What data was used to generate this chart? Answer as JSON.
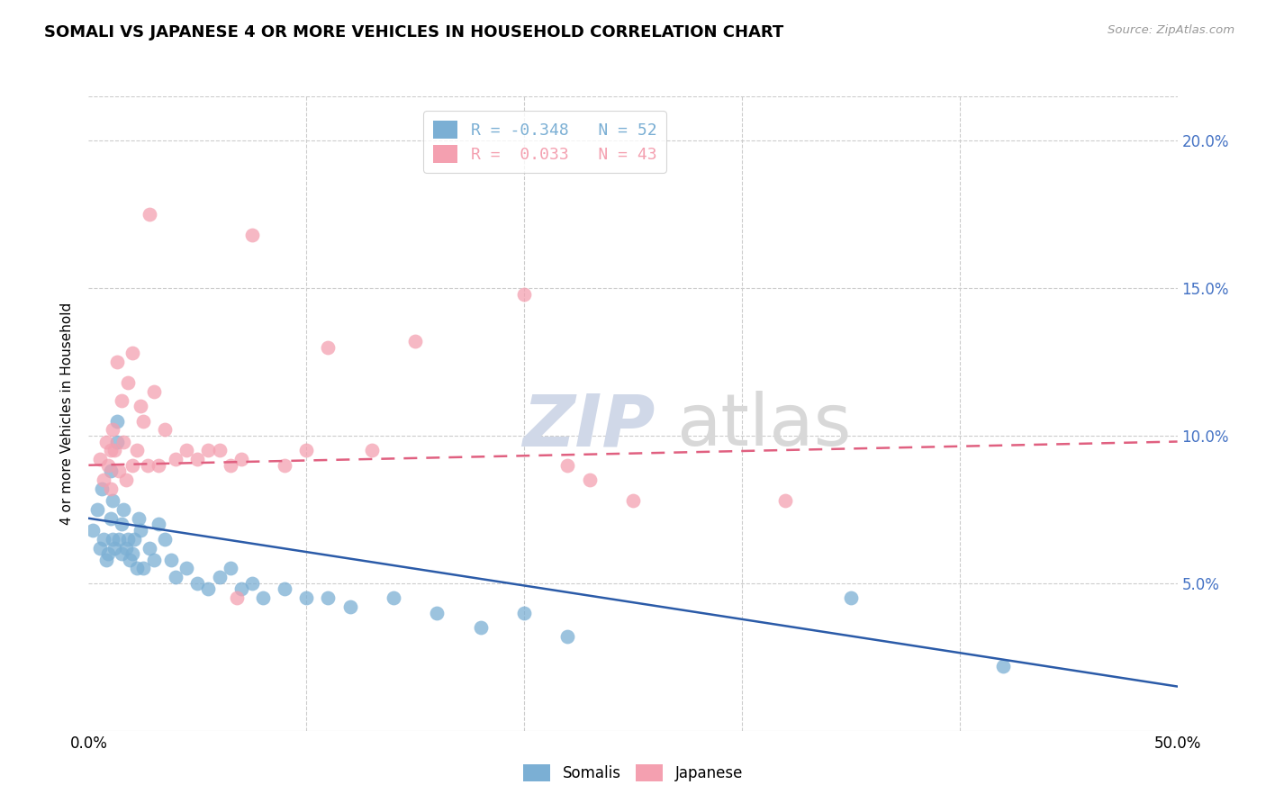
{
  "title": "SOMALI VS JAPANESE 4 OR MORE VEHICLES IN HOUSEHOLD CORRELATION CHART",
  "source": "Source: ZipAtlas.com",
  "ylabel": "4 or more Vehicles in Household",
  "xlim": [
    0.0,
    50.0
  ],
  "ylim": [
    0.0,
    21.5
  ],
  "yticks": [
    5.0,
    10.0,
    15.0,
    20.0
  ],
  "ytick_labels": [
    "5.0%",
    "10.0%",
    "15.0%",
    "20.0%"
  ],
  "legend_entries": [
    {
      "label": "R = -0.348   N = 52",
      "color": "#7BAFD4"
    },
    {
      "label": "R =  0.033   N = 43",
      "color": "#F4A0B0"
    }
  ],
  "somali_color": "#7BAFD4",
  "japanese_color": "#F4A0B0",
  "somali_line_color": "#2B5BA8",
  "japanese_line_color": "#E06080",
  "somali_points": [
    [
      0.2,
      6.8
    ],
    [
      0.4,
      7.5
    ],
    [
      0.5,
      6.2
    ],
    [
      0.6,
      8.2
    ],
    [
      0.7,
      6.5
    ],
    [
      0.8,
      5.8
    ],
    [
      0.9,
      6.0
    ],
    [
      1.0,
      7.2
    ],
    [
      1.0,
      8.8
    ],
    [
      1.1,
      6.5
    ],
    [
      1.1,
      7.8
    ],
    [
      1.2,
      6.2
    ],
    [
      1.3,
      9.8
    ],
    [
      1.3,
      10.5
    ],
    [
      1.4,
      6.5
    ],
    [
      1.5,
      7.0
    ],
    [
      1.5,
      6.0
    ],
    [
      1.6,
      7.5
    ],
    [
      1.7,
      6.2
    ],
    [
      1.8,
      6.5
    ],
    [
      1.9,
      5.8
    ],
    [
      2.0,
      6.0
    ],
    [
      2.1,
      6.5
    ],
    [
      2.2,
      5.5
    ],
    [
      2.3,
      7.2
    ],
    [
      2.4,
      6.8
    ],
    [
      2.5,
      5.5
    ],
    [
      2.8,
      6.2
    ],
    [
      3.0,
      5.8
    ],
    [
      3.2,
      7.0
    ],
    [
      3.5,
      6.5
    ],
    [
      3.8,
      5.8
    ],
    [
      4.0,
      5.2
    ],
    [
      4.5,
      5.5
    ],
    [
      5.0,
      5.0
    ],
    [
      5.5,
      4.8
    ],
    [
      6.0,
      5.2
    ],
    [
      6.5,
      5.5
    ],
    [
      7.0,
      4.8
    ],
    [
      7.5,
      5.0
    ],
    [
      8.0,
      4.5
    ],
    [
      9.0,
      4.8
    ],
    [
      10.0,
      4.5
    ],
    [
      11.0,
      4.5
    ],
    [
      12.0,
      4.2
    ],
    [
      14.0,
      4.5
    ],
    [
      16.0,
      4.0
    ],
    [
      18.0,
      3.5
    ],
    [
      20.0,
      4.0
    ],
    [
      22.0,
      3.2
    ],
    [
      35.0,
      4.5
    ],
    [
      42.0,
      2.2
    ]
  ],
  "japanese_points": [
    [
      0.5,
      9.2
    ],
    [
      0.7,
      8.5
    ],
    [
      0.8,
      9.8
    ],
    [
      0.9,
      9.0
    ],
    [
      1.0,
      9.5
    ],
    [
      1.0,
      8.2
    ],
    [
      1.1,
      10.2
    ],
    [
      1.2,
      9.5
    ],
    [
      1.3,
      12.5
    ],
    [
      1.4,
      8.8
    ],
    [
      1.5,
      11.2
    ],
    [
      1.6,
      9.8
    ],
    [
      1.7,
      8.5
    ],
    [
      1.8,
      11.8
    ],
    [
      2.0,
      9.0
    ],
    [
      2.0,
      12.8
    ],
    [
      2.2,
      9.5
    ],
    [
      2.4,
      11.0
    ],
    [
      2.5,
      10.5
    ],
    [
      2.7,
      9.0
    ],
    [
      2.8,
      17.5
    ],
    [
      3.0,
      11.5
    ],
    [
      3.2,
      9.0
    ],
    [
      3.5,
      10.2
    ],
    [
      4.0,
      9.2
    ],
    [
      4.5,
      9.5
    ],
    [
      5.0,
      9.2
    ],
    [
      5.5,
      9.5
    ],
    [
      6.0,
      9.5
    ],
    [
      6.5,
      9.0
    ],
    [
      7.0,
      9.2
    ],
    [
      7.5,
      16.8
    ],
    [
      9.0,
      9.0
    ],
    [
      10.0,
      9.5
    ],
    [
      11.0,
      13.0
    ],
    [
      13.0,
      9.5
    ],
    [
      15.0,
      13.2
    ],
    [
      20.0,
      14.8
    ],
    [
      22.0,
      9.0
    ],
    [
      23.0,
      8.5
    ],
    [
      25.0,
      7.8
    ],
    [
      32.0,
      7.8
    ],
    [
      6.8,
      4.5
    ]
  ],
  "somali_trend": {
    "x_start": 0.0,
    "y_start": 7.2,
    "x_end": 50.0,
    "y_end": 1.5
  },
  "japanese_trend": {
    "x_start": 0.0,
    "y_start": 9.0,
    "x_end": 50.0,
    "y_end": 9.8
  },
  "background_color": "#FFFFFF",
  "grid_color": "#CCCCCC"
}
